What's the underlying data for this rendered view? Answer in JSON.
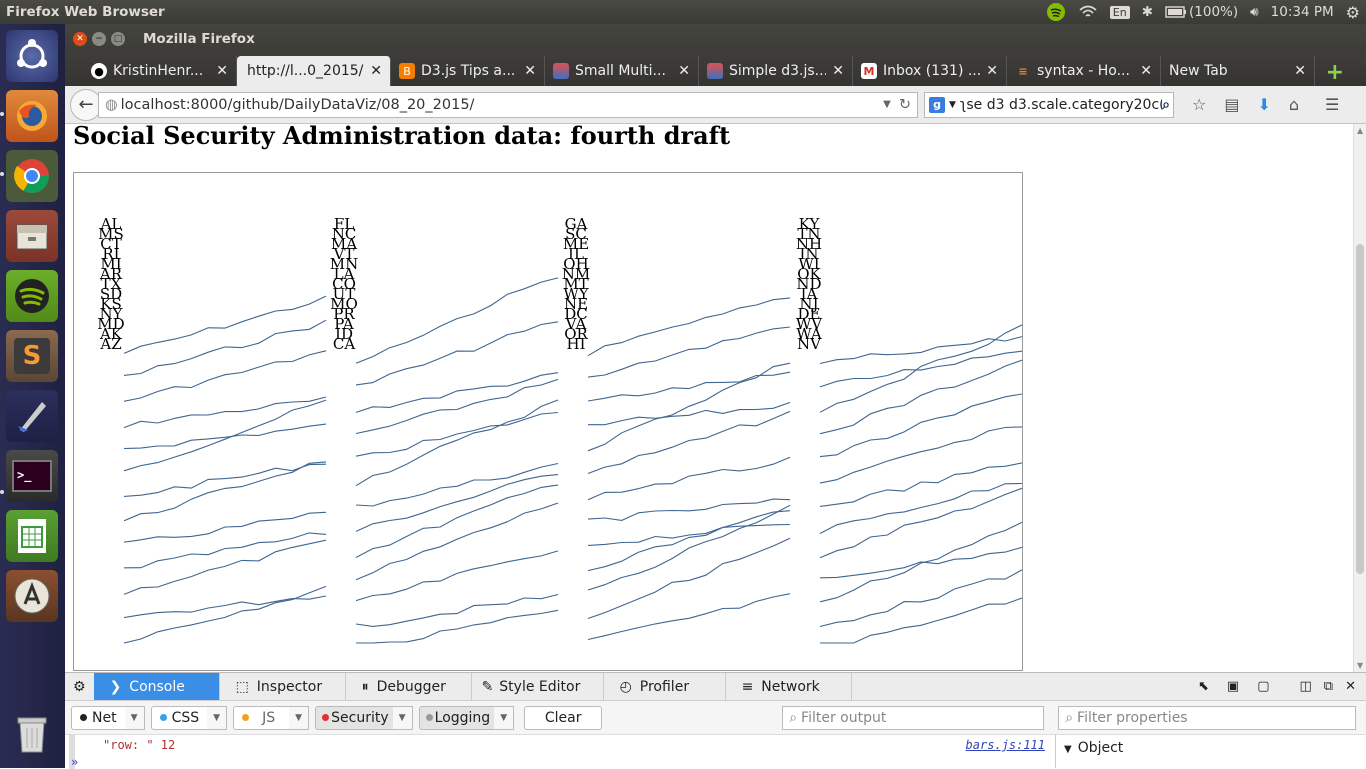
{
  "system": {
    "app_title": "Firefox Web Browser",
    "keyboard": "En",
    "battery": "(100%)",
    "clock": "10:34 PM"
  },
  "launcher": {
    "items": [
      "ubuntu-dash",
      "firefox",
      "chrome",
      "files",
      "spotify",
      "sublime-text",
      "inkscape",
      "terminal",
      "libreoffice-calc",
      "software-updater",
      "trash"
    ]
  },
  "window": {
    "title": "Mozilla Firefox"
  },
  "tabs": [
    {
      "label": "KristinHenr...",
      "icon": "github-icon"
    },
    {
      "label": "http://l...0_2015/",
      "icon": "",
      "active": true
    },
    {
      "label": "D3.js Tips a...",
      "icon": "blogger-icon"
    },
    {
      "label": "Small Multi...",
      "icon": "stackexchange-icon"
    },
    {
      "label": "Simple d3.js...",
      "icon": "stackexchange-icon"
    },
    {
      "label": "Inbox (131) ...",
      "icon": "gmail-icon"
    },
    {
      "label": "syntax - Ho...",
      "icon": "stackoverflow-icon"
    },
    {
      "label": "New Tab",
      "icon": ""
    }
  ],
  "navbar": {
    "url": "localhost:8000/github/DailyDataViz/08_20_2015/",
    "search": "ʅse d3 d3.scale.category20c()"
  },
  "page": {
    "title": "Social Security Administration data: fourth draft"
  },
  "chart_data": {
    "type": "line",
    "panels": [
      {
        "labels": [
          "AL",
          "MS",
          "CT",
          "RI",
          "MI",
          "AR",
          "TX",
          "SD",
          "KS",
          "NY",
          "MD",
          "AK",
          "AZ"
        ]
      },
      {
        "labels": [
          "FL",
          "NC",
          "MA",
          "VT",
          "MN",
          "LA",
          "CO",
          "UT",
          "MO",
          "PR",
          "PA",
          "ID",
          "CA"
        ]
      },
      {
        "labels": [
          "GA",
          "SC",
          "ME",
          "IL",
          "OH",
          "NM",
          "MT",
          "WY",
          "NE",
          "DC",
          "VA",
          "OR",
          "HI"
        ]
      },
      {
        "labels": [
          "KY",
          "TN",
          "NH",
          "IN",
          "WI",
          "OK",
          "ND",
          "IA",
          "NJ",
          "DE",
          "WV",
          "WA",
          "NV"
        ]
      }
    ]
  },
  "devtools": {
    "tabs": [
      "Console",
      "Inspector",
      "Debugger",
      "Style Editor",
      "Profiler",
      "Network"
    ],
    "filters": {
      "net": "Net",
      "css": "CSS",
      "js": "JS",
      "security": "Security",
      "logging": "Logging",
      "clear": "Clear",
      "filter_output_placeholder": "Filter output",
      "filter_properties_placeholder": "Filter properties"
    },
    "console_lines": [
      {
        "text": "\"row: \" 12",
        "source": "bars.js:111"
      }
    ],
    "object_panel": "Object"
  }
}
